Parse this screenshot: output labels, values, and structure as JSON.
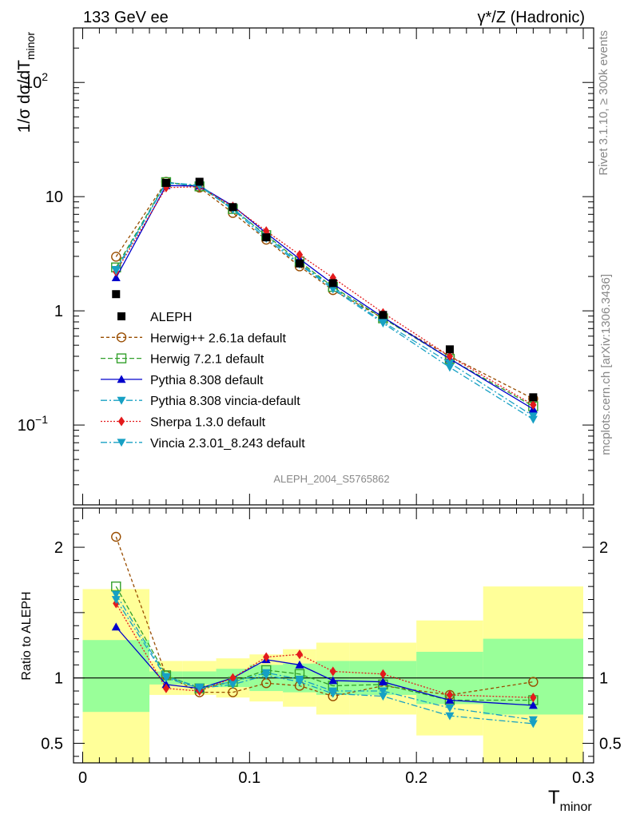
{
  "chart_data": {
    "type": "line",
    "title_left": "133 GeV ee",
    "title_right": "γ*/Z (Hadronic)",
    "xlabel": "T",
    "xlabel_sub": "minor",
    "ylabel_main": "1/σ  dσ/dT",
    "ylabel_main_sub": "minor",
    "ylabel_ratio": "Ratio to ALEPH",
    "side_label_top": "Rivet 3.1.10, ≥ 300k events",
    "side_label_bottom": "mcplots.cern.ch [arXiv:1306.3436]",
    "analysis_label": "ALEPH_2004_S5765862",
    "xlim": [
      0,
      0.3
    ],
    "ylim_main": [
      0.02,
      300
    ],
    "yscale_main": "log",
    "ylim_ratio": [
      0.35,
      2.3
    ],
    "x_ticks": [
      "0",
      "0.1",
      "0.2",
      "0.3"
    ],
    "x_tick_values": [
      0,
      0.1,
      0.2,
      0.3
    ],
    "y_main_ticks": [
      {
        "value": 100,
        "base": "10",
        "exp": "2"
      },
      {
        "value": 10,
        "base": "10",
        "exp": ""
      },
      {
        "value": 1,
        "base": "1",
        "exp": ""
      },
      {
        "value": 0.1,
        "base": "10",
        "exp": "−1"
      }
    ],
    "y_ratio_ticks": [
      {
        "value": 2,
        "label": "2"
      },
      {
        "value": 1,
        "label": "1"
      },
      {
        "value": 0.5,
        "label": "0.5"
      }
    ],
    "x": [
      0.02,
      0.05,
      0.07,
      0.09,
      0.11,
      0.13,
      0.15,
      0.18,
      0.22,
      0.27
    ],
    "bin_edges": [
      0,
      0.04,
      0.06,
      0.08,
      0.1,
      0.12,
      0.14,
      0.16,
      0.2,
      0.24,
      0.3
    ],
    "data": {
      "name": "ALEPH",
      "values": [
        1.4,
        13.2,
        13.5,
        8.1,
        4.4,
        2.6,
        1.75,
        0.92,
        0.46,
        0.175
      ]
    },
    "band_inner": [
      [
        0.74,
        1.29
      ],
      [
        0.95,
        1.05
      ],
      [
        0.95,
        1.05
      ],
      [
        0.93,
        1.07
      ],
      [
        0.9,
        1.1
      ],
      [
        0.89,
        1.11
      ],
      [
        0.87,
        1.13
      ],
      [
        0.87,
        1.13
      ],
      [
        0.8,
        1.2
      ],
      [
        0.72,
        1.3
      ]
    ],
    "band_outer": [
      [
        0.35,
        1.68
      ],
      [
        0.87,
        1.13
      ],
      [
        0.87,
        1.13
      ],
      [
        0.85,
        1.15
      ],
      [
        0.82,
        1.18
      ],
      [
        0.78,
        1.22
      ],
      [
        0.72,
        1.27
      ],
      [
        0.72,
        1.27
      ],
      [
        0.56,
        1.44
      ],
      [
        0.35,
        1.7
      ]
    ],
    "series": [
      {
        "name": "Herwig++ 2.6.1a default",
        "color": "#994d00",
        "dash": "4,3",
        "marker": "circle-open",
        "values": [
          2.98,
          13.5,
          12.0,
          7.2,
          4.2,
          2.45,
          1.52,
          0.86,
          0.4,
          0.17
        ],
        "ratio": [
          2.08,
          1.02,
          0.89,
          0.89,
          0.96,
          0.94,
          0.86,
          0.94,
          0.87,
          0.97
        ]
      },
      {
        "name": "Herwig 7.2.1 default",
        "color": "#33a02c",
        "dash": "6,3",
        "marker": "square-open",
        "values": [
          2.4,
          13.4,
          12.3,
          7.8,
          4.6,
          2.7,
          1.62,
          0.86,
          0.38,
          0.146
        ],
        "ratio": [
          1.7,
          1.02,
          0.92,
          0.97,
          1.06,
          1.03,
          0.94,
          0.95,
          0.83,
          0.83
        ]
      },
      {
        "name": "Pythia 8.308 default",
        "color": "#0000cc",
        "dash": "",
        "marker": "triangle-up",
        "values": [
          1.95,
          12.5,
          12.4,
          8.3,
          4.8,
          2.85,
          1.72,
          0.88,
          0.38,
          0.138
        ],
        "ratio": [
          1.39,
          0.95,
          0.92,
          1.0,
          1.14,
          1.1,
          0.98,
          0.97,
          0.83,
          0.79
        ]
      },
      {
        "name": "Pythia 8.308 vincia-default",
        "color": "#17a0c4",
        "dash": "8,3,2,3",
        "marker": "triangle-down",
        "values": [
          2.3,
          13.3,
          12.6,
          7.9,
          4.5,
          2.6,
          1.6,
          0.8,
          0.35,
          0.12
        ],
        "ratio": [
          1.64,
          1.01,
          0.93,
          0.97,
          1.04,
          0.99,
          0.9,
          0.9,
          0.77,
          0.68
        ]
      },
      {
        "name": "Sherpa 1.3.0 default",
        "color": "#e31a1c",
        "dash": "2,2",
        "marker": "diamond",
        "values": [
          2.2,
          12.0,
          12.2,
          8.2,
          5.0,
          3.1,
          1.95,
          0.96,
          0.4,
          0.15
        ],
        "ratio": [
          1.57,
          0.92,
          0.9,
          1.0,
          1.16,
          1.18,
          1.05,
          1.03,
          0.87,
          0.85
        ]
      },
      {
        "name": "Vincia 2.3.01_8.243 default",
        "color": "#17a0c4",
        "dash": "8,3,2,3",
        "marker": "triangle-down",
        "values": [
          2.25,
          13.2,
          12.4,
          7.7,
          4.3,
          2.55,
          1.55,
          0.78,
          0.32,
          0.112
        ],
        "ratio": [
          1.6,
          1.0,
          0.92,
          0.95,
          1.02,
          0.97,
          0.88,
          0.86,
          0.71,
          0.65
        ]
      }
    ]
  }
}
